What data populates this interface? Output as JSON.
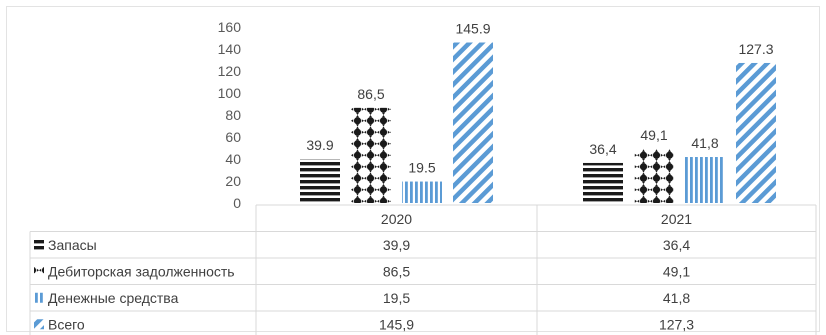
{
  "chart_data": {
    "type": "bar",
    "title": "",
    "xlabel": "",
    "ylabel": "",
    "categories": [
      "2020",
      "2021"
    ],
    "ylim": [
      0,
      160
    ],
    "yticks": [
      "0",
      "20",
      "40",
      "60",
      "80",
      "100",
      "120",
      "140",
      "160"
    ],
    "grid": false,
    "legend": "table-left",
    "series": [
      {
        "name": "Запасы",
        "values": [
          39.9,
          36.4
        ],
        "labels": [
          "39.9",
          "36,4"
        ],
        "table_values": [
          "39,9",
          "36,4"
        ],
        "color": "#1a1a1a",
        "pattern": "horizontal-lines"
      },
      {
        "name": "Дебиторская задолженность",
        "values": [
          86.5,
          49.1
        ],
        "labels": [
          "86,5",
          "49,1"
        ],
        "table_values": [
          "86,5",
          "49,1"
        ],
        "color": "#1a1a1a",
        "pattern": "dots"
      },
      {
        "name": "Денежные средства",
        "values": [
          19.5,
          41.8
        ],
        "labels": [
          "19.5",
          "41,8"
        ],
        "table_values": [
          "19,5",
          "41,8"
        ],
        "color": "#5b9bd5",
        "pattern": "vertical-lines"
      },
      {
        "name": "Всего",
        "values": [
          145.9,
          127.3
        ],
        "labels": [
          "145.9",
          "127.3"
        ],
        "table_values": [
          "145,9",
          "127,3"
        ],
        "color": "#5b9bd5",
        "pattern": "diagonal-lines"
      }
    ]
  }
}
